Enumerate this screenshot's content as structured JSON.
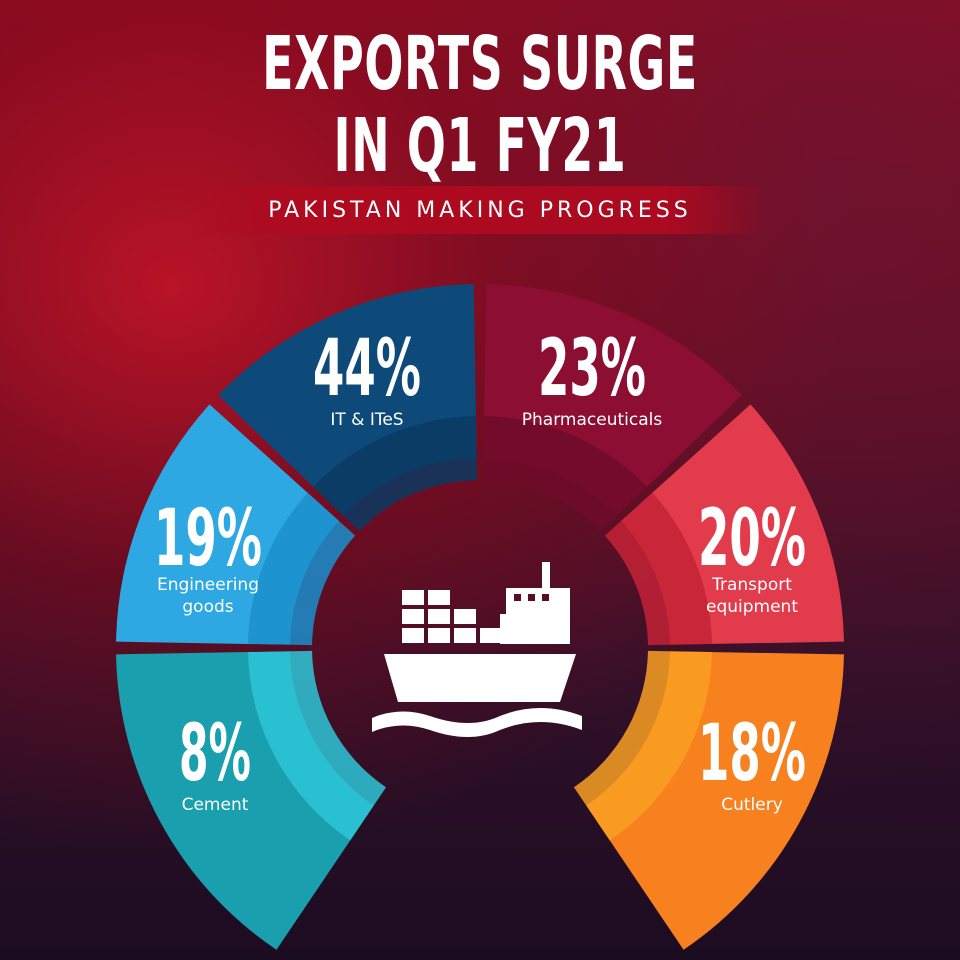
{
  "header": {
    "title_line1": "EXPORTS SURGE",
    "title_line2": "IN Q1 FY21",
    "subtitle": "PAKISTAN MAKING PROGRESS"
  },
  "segments": [
    {
      "value": "44%",
      "label_lines": [
        "IT & ITeS"
      ],
      "color": "#0d4a7a",
      "inner_color": "#0a3a62"
    },
    {
      "value": "23%",
      "label_lines": [
        "Pharmaceuticals"
      ],
      "color": "#8c0f33",
      "inner_color": "#6e0c29"
    },
    {
      "value": "19%",
      "label_lines": [
        "Engineering",
        "goods"
      ],
      "color": "#2ea8e2",
      "inner_color": "#1a8fcc"
    },
    {
      "value": "20%",
      "label_lines": [
        "Transport",
        "equipment"
      ],
      "color": "#e23c4c",
      "inner_color": "#c42236"
    },
    {
      "value": "8%",
      "label_lines": [
        "Cement"
      ],
      "color": "#1a9fae",
      "inner_color": "#2dc7d8"
    },
    {
      "value": "18%",
      "label_lines": [
        "Cutlery"
      ],
      "color": "#f7801f",
      "inner_color": "#f9a022"
    }
  ],
  "center_icon": "cargo-ship-icon"
}
